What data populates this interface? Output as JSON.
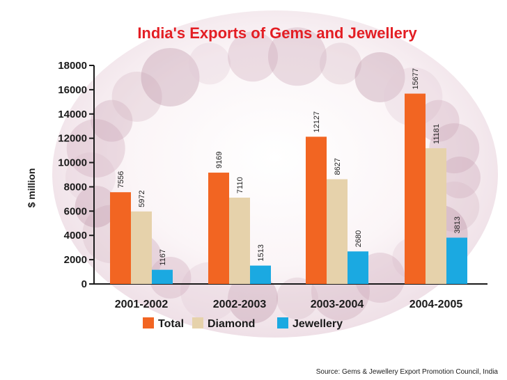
{
  "chart_data": {
    "type": "bar",
    "title": "India's Exports of Gems and Jewellery",
    "xlabel": "",
    "ylabel": "$ million",
    "ylim": [
      0,
      18000
    ],
    "yticks": [
      "0",
      "2000",
      "4000",
      "6000",
      "8000",
      "10000",
      "12000",
      "14000",
      "16000",
      "18000"
    ],
    "categories": [
      "2001-2002",
      "2002-2003",
      "2003-2004",
      "2004-2005"
    ],
    "series": [
      {
        "name": "Total",
        "color": "#f26522",
        "values": [
          7556,
          9169,
          12127,
          15677
        ]
      },
      {
        "name": "Diamond",
        "color": "#e6d2ab",
        "values": [
          5972,
          7110,
          8627,
          11181
        ]
      },
      {
        "name": "Jewellery",
        "color": "#1ba9e1",
        "values": [
          1167,
          1513,
          2680,
          3813
        ]
      }
    ],
    "value_labels": [
      [
        "7556",
        "9169",
        "12127",
        "15677"
      ],
      [
        "5972",
        "7110",
        "8627",
        "11181"
      ],
      [
        "1167",
        "1513",
        "2680",
        "3813"
      ]
    ],
    "legend": "bottom",
    "source": "Source: Gems & Jewellery Export Promotion Council, India"
  },
  "colors": {
    "title": "#e31e24",
    "axis": "#1a1a1a",
    "background_tint": "#f3e9ee"
  }
}
